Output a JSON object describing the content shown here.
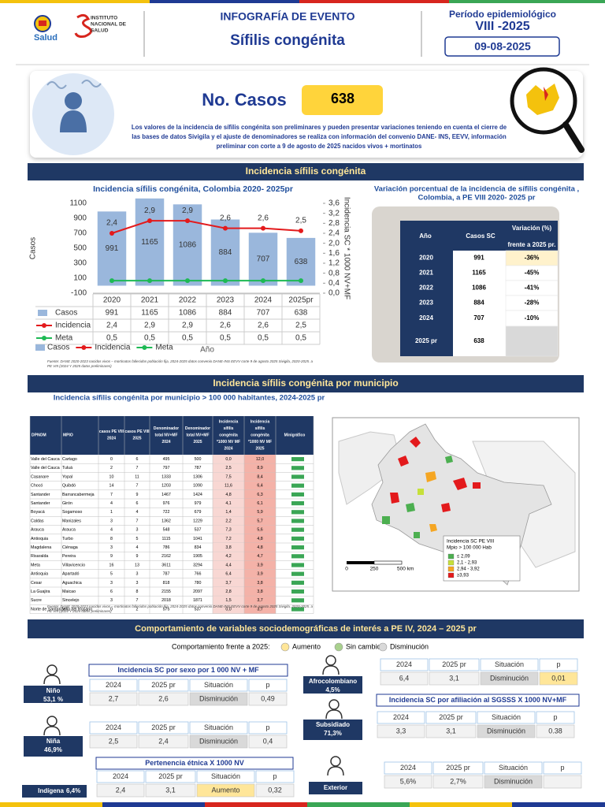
{
  "header": {
    "ministry": "Salud",
    "institute": [
      "Instituto",
      "Nacional de",
      "Salud"
    ],
    "title": "INFOGRAFÍA DE EVENTO",
    "event": "Sífilis congénita",
    "period_label": "Período epidemiológico",
    "period": "VIII -2025",
    "date": "09-08-2025"
  },
  "cases": {
    "label": "No. Casos",
    "value": 638,
    "note": [
      "Los valores de la incidencia de sífilis congénita son preliminares y pueden presentar variaciones teniendo en cuenta el cierre de",
      "las bases de datos Sivigila y el ajuste de denominadores se realiza con información del convenio DANE- INS, EEVV, información",
      "preliminar con corte a 9 de agosto de 2025 nacidos vivos + mortinatos"
    ]
  },
  "sections": [
    "Incidencia sífilis congénita",
    "Incidencia sífilis congénita por municipio",
    "Comportamiento de variables sociodemográficas de interés a PE IV, 2024 – 2025 pr"
  ],
  "chart_data": {
    "type": "bar_line",
    "title": "Incidencia sífilis congénita, Colombia 2020- 2025pr",
    "y_label": "Casos",
    "y2_label": "Incidencia SC * 1000 NV+MF",
    "x_label": "Año",
    "categories": [
      "2020",
      "2021",
      "2022",
      "2023",
      "2024",
      "2025pr"
    ],
    "series": [
      {
        "name": "Casos",
        "type": "bar",
        "color": "#9ab7dc",
        "values": [
          991,
          1165,
          1086,
          884,
          707,
          638
        ]
      },
      {
        "name": "Incidencia",
        "type": "line",
        "axis": "y2",
        "color": "#e31a1c",
        "values": [
          2.4,
          2.9,
          2.9,
          2.6,
          2.6,
          2.5
        ],
        "value_labels": [
          "2,4",
          "2,9",
          "2,9",
          "2,6",
          "2,6",
          "2,5"
        ]
      },
      {
        "name": "Meta",
        "type": "line",
        "axis": "y2",
        "color": "#1db954",
        "values": [
          0.5,
          0.5,
          0.5,
          0.5,
          0.5,
          0.5
        ],
        "value_labels": [
          "0,5",
          "0,5",
          "0,5",
          "0,5",
          "0,5",
          "0,5"
        ]
      }
    ],
    "ylim": [
      -100,
      1100
    ],
    "yticks": [
      -100,
      100,
      300,
      500,
      700,
      900,
      1100
    ],
    "y2lim": [
      0,
      3.6
    ],
    "y2ticks": [
      {
        "value": 0,
        "label": "0,0"
      },
      {
        "value": 0.4,
        "label": "0,4"
      },
      {
        "value": 0.8,
        "label": "0,8"
      },
      {
        "value": 1.2,
        "label": "1,2"
      },
      {
        "value": 1.6,
        "label": "1,6"
      },
      {
        "value": 2.0,
        "label": "2,0"
      },
      {
        "value": 2.4,
        "label": "2,4"
      },
      {
        "value": 2.8,
        "label": "2,8"
      },
      {
        "value": 3.2,
        "label": "3,2"
      },
      {
        "value": 3.6,
        "label": "3,6"
      }
    ],
    "grid": false,
    "source": [
      "Fuente: DANE 2020-2023 nacidos vivos – mortinatos fallecidos población fija, 2024-2025 datos convenio DANE-INS EEVV corte 9 de agosto 2025 Sivigila, 2020-2025. a",
      "PE VIII (2024 Y 2025 datos preliminares)"
    ]
  },
  "variation_table": {
    "title": [
      "Variación porcentual de la incidencia de sífilis congénita ,",
      "Colombia, a PE VIII 2020- 2025 pr"
    ],
    "headers": [
      "Año",
      "Casos SC",
      "Variación (%)",
      "frente a 2025 pr."
    ],
    "rows": [
      [
        "2020",
        991,
        "-36%"
      ],
      [
        "2021",
        1165,
        "-45%"
      ],
      [
        "2022",
        1086,
        "-41%"
      ],
      [
        "2023",
        884,
        "-28%"
      ],
      [
        "2024",
        707,
        "-10%"
      ],
      [
        "2025 pr",
        638,
        null
      ]
    ]
  },
  "municipal_table": {
    "title": "Incidencia sífilis congénita por municipio > 100 000 habitantes, 2024-2025 pr",
    "headers": [
      [
        "DPNOM"
      ],
      [
        "MPIO"
      ],
      [
        "casos PE VIII",
        "2024"
      ],
      [
        "casos PE VIII",
        "2025"
      ],
      [
        "Denominador",
        "total NV+MF",
        "2024"
      ],
      [
        "Denominador",
        "total NV+MF",
        "2025"
      ],
      [
        "Incidencia",
        "sífilis",
        "congénita",
        "*1000 NV MF",
        "2024"
      ],
      [
        "Incidencia",
        "sífilis",
        "congénita",
        "*1000 NV MF",
        "2025"
      ],
      [
        "Minigráfico"
      ]
    ],
    "rows": [
      [
        "Valle del Cauca",
        "Cartago",
        0,
        6,
        495,
        500,
        "0,0",
        "12,0"
      ],
      [
        "Valle del Cauca",
        "Tuluá",
        2,
        7,
        797,
        787,
        "2,5",
        "8,9"
      ],
      [
        "Casanare",
        "Yopal",
        10,
        11,
        1333,
        1306,
        "7,5",
        "8,4"
      ],
      [
        "Chocó",
        "Quibdó",
        14,
        7,
        1203,
        1090,
        "11,6",
        "6,4"
      ],
      [
        "Santander",
        "Barrancabermeja",
        7,
        9,
        1467,
        1424,
        "4,8",
        "6,3"
      ],
      [
        "Santander",
        "Girón",
        4,
        6,
        976,
        979,
        "4,1",
        "6,1"
      ],
      [
        "Boyacá",
        "Sogamoso",
        1,
        4,
        722,
        679,
        "1,4",
        "5,9"
      ],
      [
        "Caldas",
        "Manizales",
        3,
        7,
        1362,
        1229,
        "2,2",
        "5,7"
      ],
      [
        "Arauca",
        "Arauca",
        4,
        3,
        548,
        537,
        "7,3",
        "5,6"
      ],
      [
        "Antioquia",
        "Turbo",
        8,
        5,
        1115,
        1041,
        "7,2",
        "4,8"
      ],
      [
        "Magdalena",
        "Ciénaga",
        3,
        4,
        786,
        834,
        "3,8",
        "4,8"
      ],
      [
        "Risaralda",
        "Pereira",
        9,
        9,
        2162,
        1905,
        "4,2",
        "4,7"
      ],
      [
        "Meta",
        "Villavicencio",
        16,
        13,
        3611,
        3294,
        "4,4",
        "3,9"
      ],
      [
        "Antioquia",
        "Apartadó",
        5,
        3,
        787,
        766,
        "6,4",
        "3,9"
      ],
      [
        "Cesar",
        "Aguachica",
        3,
        3,
        818,
        780,
        "3,7",
        "3,8"
      ],
      [
        "La Guajira",
        "Maicao",
        6,
        8,
        2155,
        2097,
        "2,8",
        "3,8"
      ],
      [
        "Sucre",
        "Sincelejo",
        3,
        7,
        2018,
        1871,
        "1,5",
        "3,7"
      ],
      [
        "Norte de Santander",
        "Villa del Rosario",
        0,
        2,
        575,
        537,
        "0,0",
        "3,7"
      ]
    ],
    "source": [
      "Fuente: DANE 2020-2023 nacidos vivos – mortinatos fallecidos población fija, 2024-2025 datos convenio DANE-INS EEVV corte 9 de agosto 2025 Sivigila, 2020-2025. a",
      "PE VIII (2024 Y 2025 datos preliminares)"
    ]
  },
  "map": {
    "legend_title": [
      "Incidencia SC PE VIII",
      "Mpio > 100 000 Hab"
    ],
    "legend": [
      {
        "label": "≤ 2,09",
        "color": "#4caf50"
      },
      {
        "label": "2,1 - 2,93",
        "color": "#c6e03a"
      },
      {
        "label": "2,94 - 3,92",
        "color": "#f5a623"
      },
      {
        "label": "≥3,93",
        "color": "#e31a1c"
      }
    ],
    "scale": [
      "0",
      "250",
      "500 km"
    ]
  },
  "sociodemographic": {
    "legend_title": "Comportamiento frente a 2025:",
    "legend": [
      {
        "label": "Aumento",
        "color": "#ffe699"
      },
      {
        "label": "Sin cambio",
        "color": "#a9d18e"
      },
      {
        "label": "Disminución",
        "color": "#d9d9d9"
      }
    ],
    "headers": [
      "2024",
      "2025 pr",
      "Situación",
      "p"
    ],
    "sex_title": "Incidencia SC por sexo por 1 000 NV + MF",
    "ethnic_title": "Pertenencia étnica X 1000 NV",
    "affiliation_title": "Incidencia SC por afiliación al SGSSS X 1000 NV+MF",
    "groups": [
      {
        "label": "Niño",
        "share": "53,1 %",
        "values": [
          "2,7",
          "2,6",
          "Disminución",
          "0,49"
        ]
      },
      {
        "label": "Niña",
        "share": "46,9%",
        "values": [
          "2,5",
          "2,4",
          "Disminución",
          "0,4"
        ]
      },
      {
        "label": "Indígena",
        "share": "6,4%",
        "values": [
          "2,4",
          "3,1",
          "Aumento",
          "0,32"
        ]
      },
      {
        "label": "Afrocolombiano",
        "share": "4,5%",
        "values": [
          "6,4",
          "3,1",
          "Disminución",
          "0,01"
        ],
        "p_color": "#ffe699"
      },
      {
        "label": "Subsidiado",
        "share": "71,3%",
        "values": [
          "3,3",
          "3,1",
          "Disminución",
          "0.38"
        ]
      },
      {
        "label": "Exterior",
        "values": [
          "5,6%",
          "2,7%",
          "Disminución",
          null
        ]
      }
    ]
  }
}
